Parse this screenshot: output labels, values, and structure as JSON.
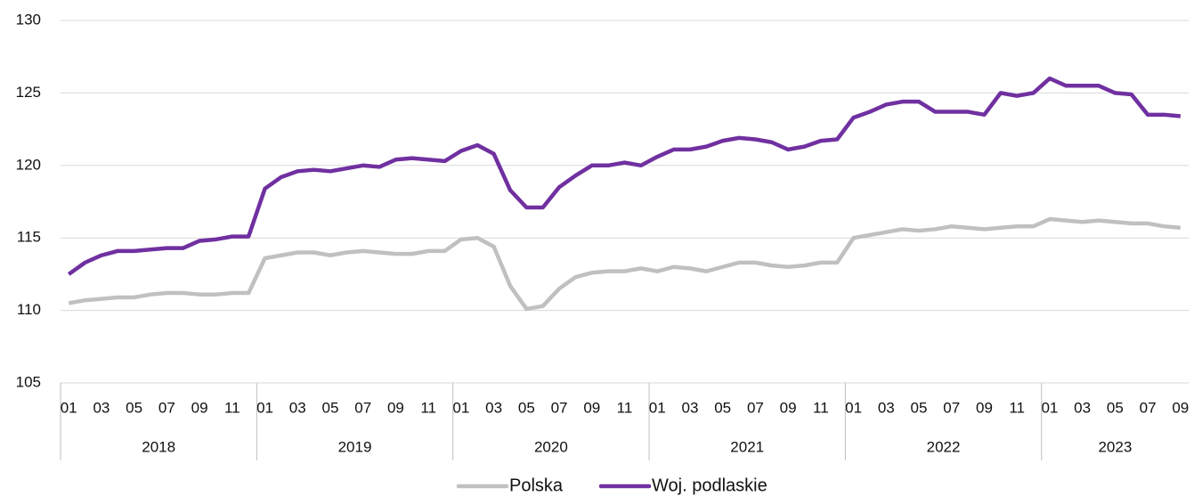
{
  "chart_data": {
    "type": "line",
    "categories": [
      "01",
      null,
      "03",
      null,
      "05",
      null,
      "07",
      null,
      "09",
      null,
      "11",
      null,
      "01",
      null,
      "03",
      null,
      "05",
      null,
      "07",
      null,
      "09",
      null,
      "11",
      null,
      "01",
      null,
      "03",
      null,
      "05",
      null,
      "07",
      null,
      "09",
      null,
      "11",
      null,
      "01",
      null,
      "03",
      null,
      "05",
      null,
      "07",
      null,
      "09",
      null,
      "11",
      null,
      "01",
      null,
      "03",
      null,
      "05",
      null,
      "07",
      null,
      "09",
      null,
      "11",
      null,
      "01",
      null,
      "03",
      null,
      "05",
      null,
      "07",
      null,
      "09"
    ],
    "x_groups": [
      "2018",
      "2019",
      "2020",
      "2021",
      "2022",
      "2023"
    ],
    "series": [
      {
        "name": "Polska",
        "color": "#c0c0c0",
        "values": [
          110.5,
          110.7,
          110.8,
          110.9,
          110.9,
          111.1,
          111.2,
          111.2,
          111.1,
          111.1,
          111.2,
          111.2,
          113.6,
          113.8,
          114.0,
          114.0,
          113.8,
          114.0,
          114.1,
          114.0,
          113.9,
          113.9,
          114.1,
          114.1,
          114.9,
          115.0,
          114.4,
          111.7,
          110.1,
          110.3,
          111.5,
          112.3,
          112.6,
          112.7,
          112.7,
          112.9,
          112.7,
          113.0,
          112.9,
          112.7,
          113.0,
          113.3,
          113.3,
          113.1,
          113.0,
          113.1,
          113.3,
          113.3,
          115.0,
          115.2,
          115.4,
          115.6,
          115.5,
          115.6,
          115.8,
          115.7,
          115.6,
          115.7,
          115.8,
          115.8,
          116.3,
          116.2,
          116.1,
          116.2,
          116.1,
          116.0,
          116.0,
          115.8,
          115.7
        ]
      },
      {
        "name": "Woj. podlaskie",
        "color": "#7030a0",
        "values": [
          112.5,
          113.3,
          113.8,
          114.1,
          114.1,
          114.2,
          114.3,
          114.3,
          114.8,
          114.9,
          115.1,
          115.1,
          118.4,
          119.2,
          119.6,
          119.7,
          119.6,
          119.8,
          120.0,
          119.9,
          120.4,
          120.5,
          120.4,
          120.3,
          121.0,
          121.4,
          120.8,
          118.3,
          117.1,
          117.1,
          118.5,
          119.3,
          120.0,
          120.0,
          120.2,
          120.0,
          120.6,
          121.1,
          121.1,
          121.3,
          121.7,
          121.9,
          121.8,
          121.6,
          121.1,
          121.3,
          121.7,
          121.8,
          123.3,
          123.7,
          124.2,
          124.4,
          124.4,
          123.7,
          123.7,
          123.7,
          123.5,
          125.0,
          124.8,
          125.0,
          126.0,
          125.5,
          125.5,
          125.5,
          125.0,
          124.9,
          123.5,
          123.5,
          123.4
        ]
      }
    ],
    "ylim": [
      105,
      130
    ],
    "yticks": [
      105,
      110,
      115,
      120,
      125,
      130
    ],
    "grid": true,
    "legend": "bottom"
  }
}
